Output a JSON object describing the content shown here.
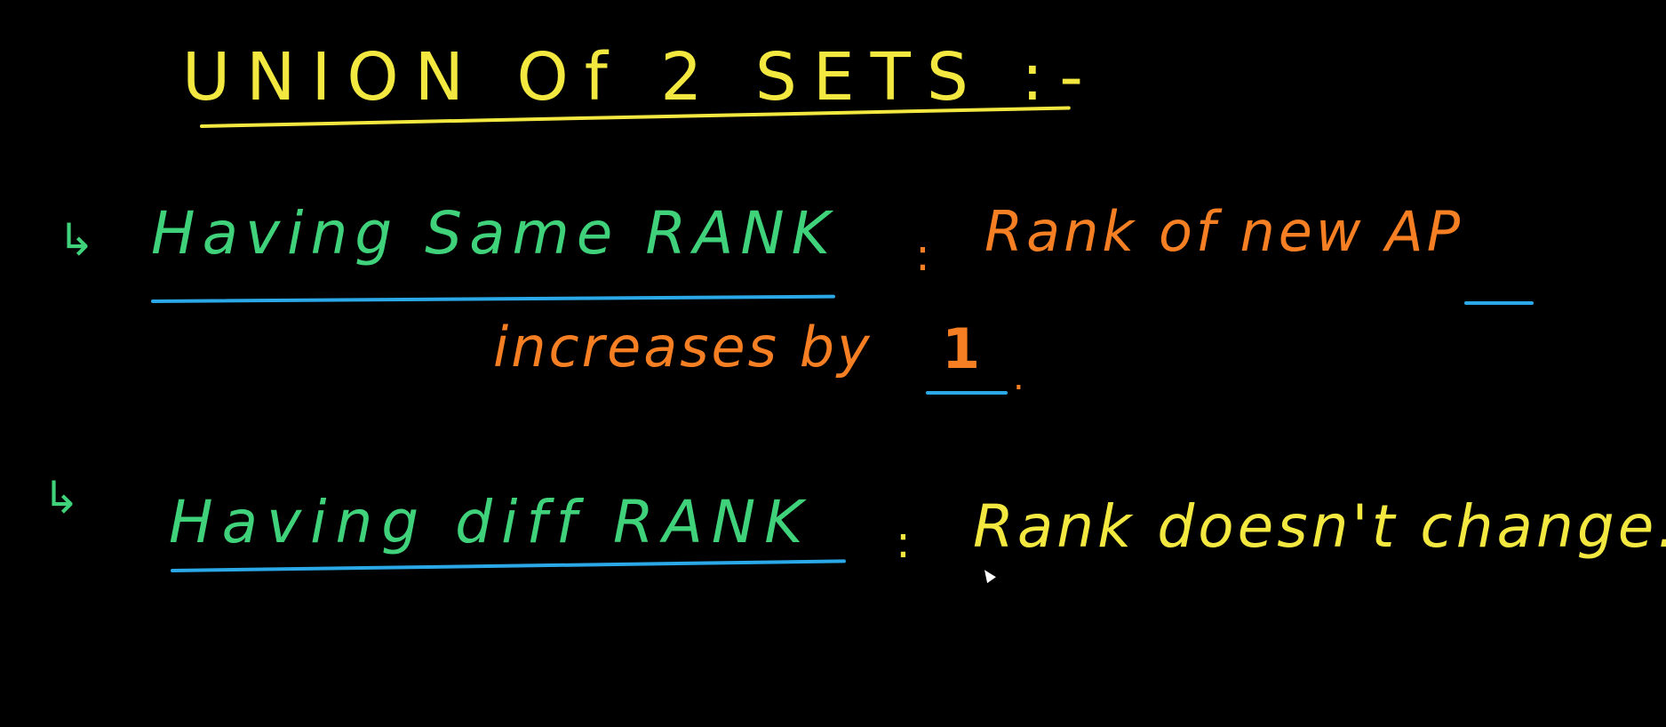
{
  "colors": {
    "background": "#000000",
    "title": "#f2e840",
    "green": "#3fd27a",
    "orange": "#f57f22",
    "yellow": "#f2e840",
    "underline_blue": "#2aa8e8"
  },
  "title": {
    "text": "UNION Of 2 SETS :-"
  },
  "rules": [
    {
      "bullet_icon": "curved-arrow-icon",
      "bullet": "↳",
      "condition": "Having Same RANK",
      "separator": ":",
      "result_line1": "Rank of new AP",
      "result_line2_part1": "increases by",
      "result_line2_number": "1",
      "result_line2_end": "."
    },
    {
      "bullet_icon": "curved-arrow-icon",
      "bullet": "↳",
      "condition": "Having diff RANK",
      "separator": ":",
      "result": "Rank doesn't change."
    }
  ]
}
